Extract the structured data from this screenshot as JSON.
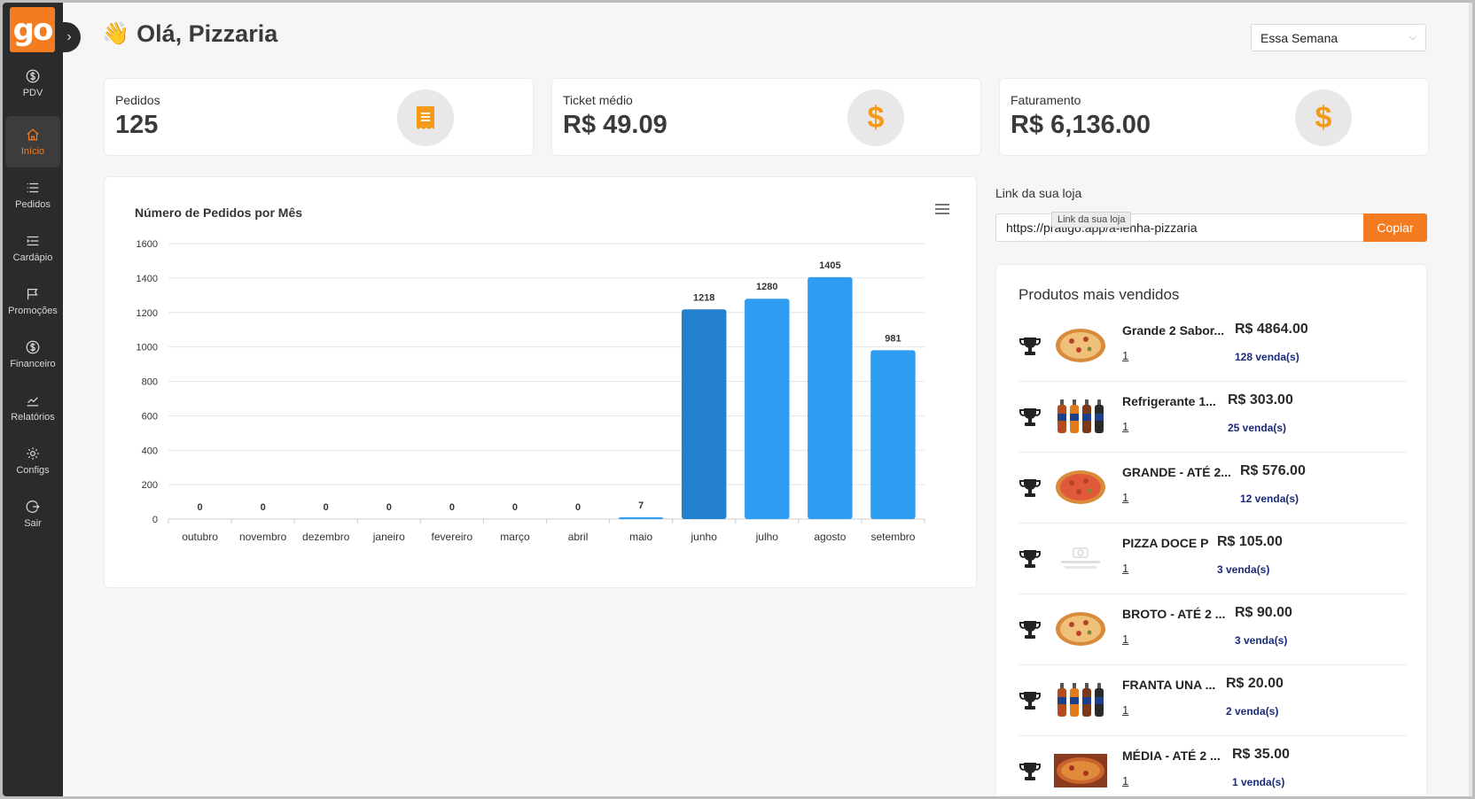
{
  "sidebar": {
    "logo": "go",
    "items": [
      {
        "label": "PDV",
        "icon": "dollar-circle-icon"
      },
      {
        "label": "Início",
        "icon": "home-icon",
        "active": true
      },
      {
        "label": "Pedidos",
        "icon": "list-icon"
      },
      {
        "label": "Cardápio",
        "icon": "menu-list-icon"
      },
      {
        "label": "Promoções",
        "icon": "flag-icon"
      },
      {
        "label": "Financeiro",
        "icon": "dollar-circle-icon"
      },
      {
        "label": "Relatórios",
        "icon": "line-chart-icon"
      },
      {
        "label": "Configs",
        "icon": "gear-icon"
      },
      {
        "label": "Sair",
        "icon": "logout-icon"
      }
    ]
  },
  "header": {
    "greeting": "Olá, Pizzaria",
    "period": "Essa Semana"
  },
  "stats": [
    {
      "label": "Pedidos",
      "value": "125",
      "icon": "receipt-icon"
    },
    {
      "label": "Ticket médio",
      "value": "R$ 49.09",
      "icon": "dollar-icon"
    },
    {
      "label": "Faturamento",
      "value": "R$ 6,136.00",
      "icon": "dollar-icon"
    }
  ],
  "chart_data": {
    "type": "bar",
    "title": "Número de Pedidos por Mês",
    "categories": [
      "outubro",
      "novembro",
      "dezembro",
      "janeiro",
      "fevereiro",
      "março",
      "abril",
      "maio",
      "junho",
      "julho",
      "agosto",
      "setembro"
    ],
    "values": [
      0,
      0,
      0,
      0,
      0,
      0,
      0,
      7,
      1218,
      1280,
      1405,
      981
    ],
    "ylim": [
      0,
      1600
    ],
    "yticks": [
      0,
      200,
      400,
      600,
      800,
      1000,
      1200,
      1400,
      1600
    ],
    "grid": true,
    "colors": {
      "bar": "#2e9df1",
      "highlight": "#2280cc"
    },
    "highlight_index": 8
  },
  "store_link": {
    "label": "Link da sua loja",
    "value": "https://pratigo.app/a-lenha-pizzaria",
    "tooltip": "Link da sua loja",
    "copy_label": "Copiar"
  },
  "products": {
    "title": "Produtos mais vendidos",
    "items": [
      {
        "name": "Grande 2 Sabor...",
        "price": "R$ 4864.00",
        "qty": "1",
        "sales": "128 venda(s)",
        "thumb": "pizza"
      },
      {
        "name": "Refrigerante 1...",
        "price": "R$ 303.00",
        "qty": "1",
        "sales": "25 venda(s)",
        "thumb": "bottles"
      },
      {
        "name": "GRANDE - ATÉ 2...",
        "price": "R$ 576.00",
        "qty": "1",
        "sales": "12 venda(s)",
        "thumb": "pizza-red"
      },
      {
        "name": "PIZZA DOCE P",
        "price": "R$ 105.00",
        "qty": "1",
        "sales": "3 venda(s)",
        "thumb": "no-image"
      },
      {
        "name": "BROTO - ATÉ 2 ...",
        "price": "R$ 90.00",
        "qty": "1",
        "sales": "3 venda(s)",
        "thumb": "pizza"
      },
      {
        "name": "FRANTA UNA ...",
        "price": "R$ 20.00",
        "qty": "1",
        "sales": "2 venda(s)",
        "thumb": "bottles"
      },
      {
        "name": "MÉDIA - ATÉ 2 ...",
        "price": "R$ 35.00",
        "qty": "1",
        "sales": "1 venda(s)",
        "thumb": "pizza-box"
      }
    ]
  }
}
